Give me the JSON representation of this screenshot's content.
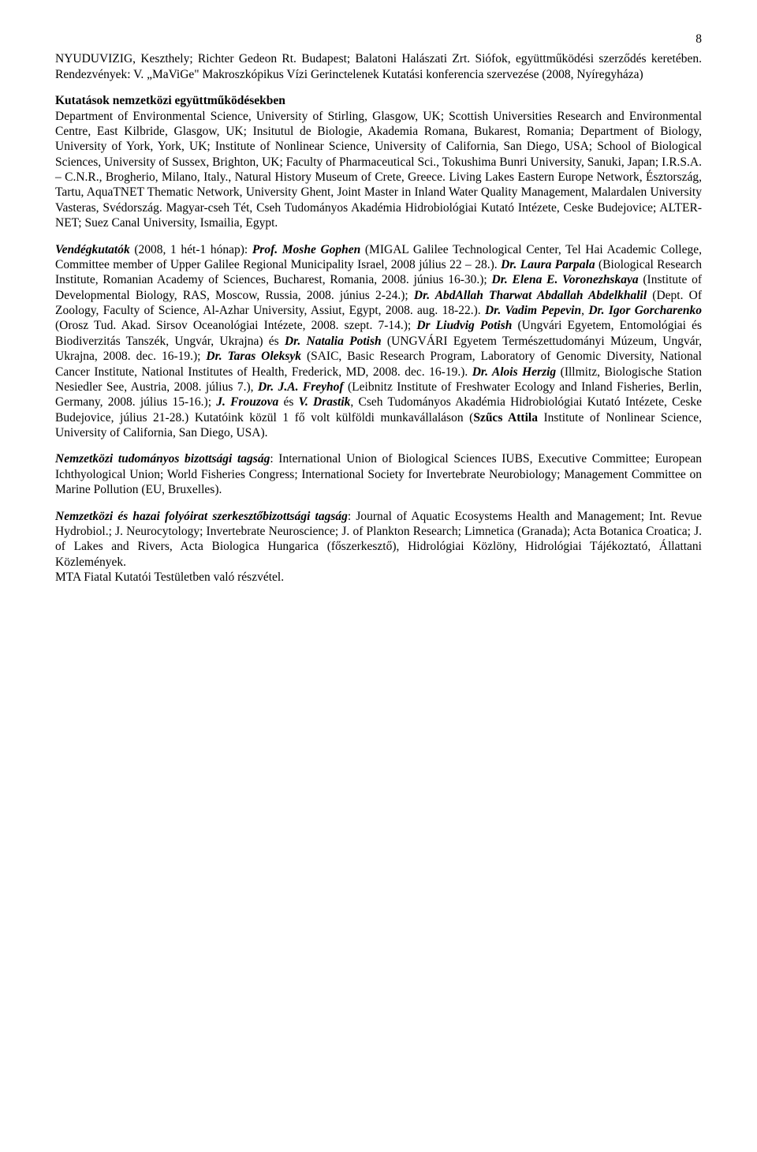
{
  "page_number": "8",
  "para1": "NYUDUVIZIG, Keszthely; Richter Gedeon Rt. Budapest; Balatoni Halászati Zrt. Siófok, együttműködési szerződés keretében. Rendezvények: V. „MaViGe\" Makroszkópikus Vízi Gerinctelenek Kutatási konferencia szervezése (2008, Nyíregyháza)",
  "heading2": "Kutatások nemzetközi együttműködésekben",
  "para3": "Department of Environmental Science, University of Stirling, Glasgow, UK; Scottish Universities Research and Environmental Centre, East Kilbride, Glasgow, UK; Insitutul de Biologie, Akademia Romana, Bukarest, Romania; Department of Biology, University of York, York, UK; Institute of Nonlinear Science, University of California, San Diego, USA; School of Biological Sciences, University of Sussex, Brighton, UK; Faculty of Pharmaceutical Sci., Tokushima Bunri University, Sanuki, Japan; I.R.S.A. – C.N.R., Brogherio, Milano, Italy., Natural History Museum of Crete, Greece. Living Lakes Eastern Europe Network, Észtország, Tartu, AquaTNET Thematic Network, University Ghent, Joint Master in Inland Water Quality Management, Malardalen University Vasteras, Svédország. Magyar-cseh Tét, Cseh Tudományos Akadémia Hidrobiológiai Kutató Intézete, Ceske Budejovice; ALTER-NET; Suez Canal University, Ismailia, Egypt.",
  "p4": {
    "lead": "Vendégkutatók",
    "leadtail": " (2008, 1 hét-1 hónap): ",
    "n1": "Prof. Moshe Gophen",
    "t1": " (MIGAL Galilee Technological Center, Tel Hai Academic College, Committee member of Upper Galilee Regional Municipality Israel, 2008 július 22 – 28.). ",
    "n2": "Dr. Laura Parpala",
    "t2": " (Biological Research Institute, Romanian Academy of Sciences, Bucharest, Romania, 2008. június 16-30.); ",
    "n3": "Dr. Elena E. Voronezhskaya",
    "t3": " (Institute of Developmental Biology, RAS, Moscow, Russia, 2008. június 2-24.); ",
    "n4": "Dr. AbdAllah Tharwat Abdallah Abdelkhalil",
    "t4": " (Dept. Of Zoology, Faculty of Science, Al-Azhar University, Assiut, Egypt, 2008. aug. 18-22.). ",
    "n5a": "Dr. Vadim Pepevin",
    "t5mid": ", ",
    "n5b": "Dr. Igor Gorcharenko",
    "t5": " (Orosz Tud. Akad. Sirsov Oceanológiai Intézete, 2008. szept. 7-14.); ",
    "n6": "Dr Liudvig Potish",
    "t6": " (Ungvári Egyetem, Entomológiai és Biodiverzitás Tanszék, Ungvár, Ukrajna) és ",
    "n7": "Dr. Natalia Potish",
    "t7": " (UNGVÁRI Egyetem Természettudományi Múzeum, Ungvár, Ukrajna, 2008. dec. 16-19.); ",
    "n8": "Dr. Taras Oleksyk",
    "t8": " (SAIC, Basic Research Program, Laboratory of Genomic Diversity, National Cancer Institute, National Institutes of Health, Frederick, MD, 2008. dec. 16-19.). ",
    "n9": "Dr. Alois Herzig",
    "t9": " (Illmitz, Biologische Station Nesiedler See, Austria, 2008. július 7.), ",
    "n10": "Dr. J.A. Freyhof",
    "t10": " (Leibnitz Institute of Freshwater Ecology and Inland Fisheries, Berlin, Germany, 2008. július 15-16.); ",
    "n11a": "J. Frouzova",
    "t11mid": " és ",
    "n11b": "V. Drastik",
    "t11": ", Cseh Tudományos Akadémia Hidrobiológiai Kutató Intézete, Ceske Budejovice, július 21-28.) Kutatóink közül 1 fő volt külföldi munkavállaláson (",
    "n12": "Szűcs Attila",
    "t12": " Institute of Nonlinear Science, University of California, San Diego, USA)."
  },
  "p5": {
    "head": "Nemzetközi tudományos bizottsági tagság",
    "body": ": International Union of Biological Sciences IUBS, Executive Committee; European Ichthyological Union; World Fisheries Congress; International Society for Invertebrate Neurobiology; Management Committee on Marine Pollution (EU, Bruxelles)."
  },
  "p6": {
    "head": "Nemzetközi és hazai folyóirat szerkesztőbizottsági tagság",
    "body": ": Journal of Aquatic Ecosystems Health and Management; Int. Revue Hydrobiol.; J. Neurocytology; Invertebrate Neuroscience; J. of Plankton Research; Limnetica (Granada); Acta Botanica Croatica; J. of Lakes and Rivers, Acta Biologica Hungarica (főszerkesztő), Hidrológiai Közlöny, Hidrológiai Tájékoztató, Állattani Közlemények."
  },
  "p7": "MTA Fiatal Kutatói Testületben való részvétel."
}
